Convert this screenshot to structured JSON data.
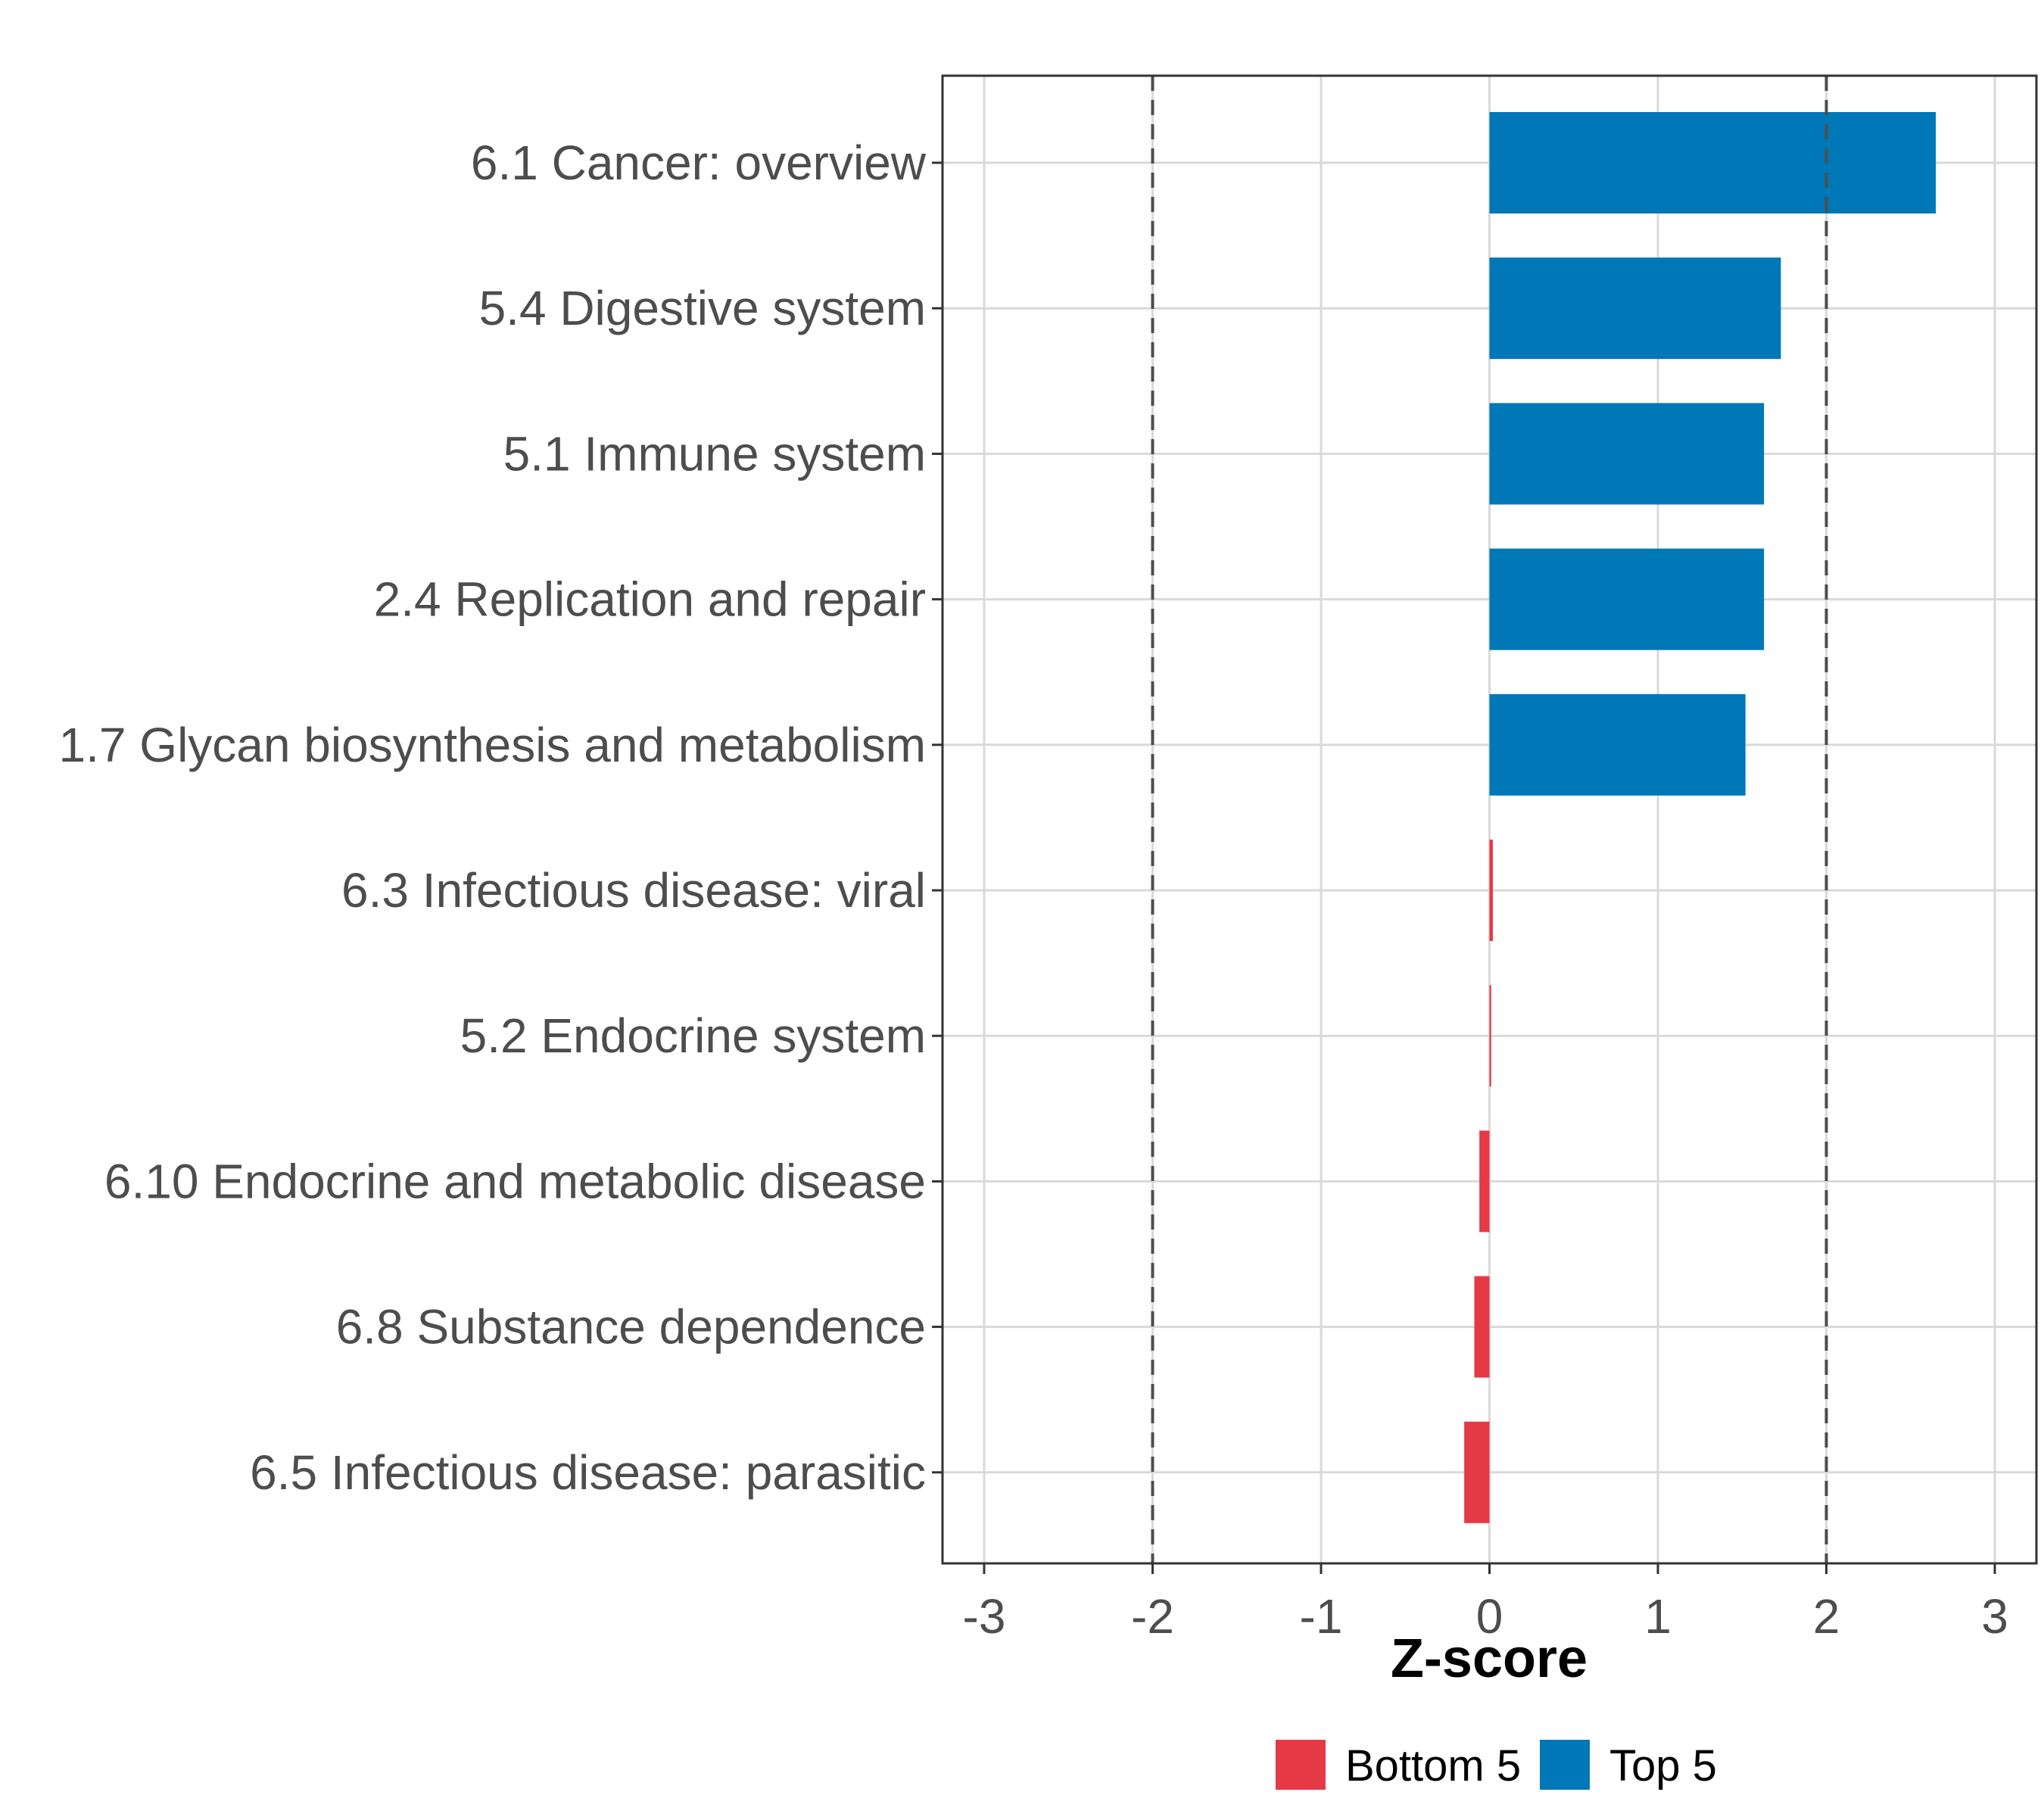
{
  "chart_data": {
    "type": "bar",
    "orientation": "horizontal",
    "categories": [
      "6.1 Cancer: overview",
      "5.4 Digestive system",
      "5.1 Immune system",
      "2.4 Replication and repair",
      "1.7 Glycan biosynthesis and metabolism",
      "6.3 Infectious disease: viral",
      "5.2 Endocrine system",
      "6.10 Endocrine and metabolic disease",
      "6.8 Substance dependence",
      "6.5 Infectious disease: parasitic"
    ],
    "values": [
      2.65,
      1.73,
      1.63,
      1.63,
      1.52,
      0.02,
      0.01,
      -0.06,
      -0.09,
      -0.15
    ],
    "groups": [
      "Top 5",
      "Top 5",
      "Top 5",
      "Top 5",
      "Top 5",
      "Bottom 5",
      "Bottom 5",
      "Bottom 5",
      "Bottom 5",
      "Bottom 5"
    ],
    "xlabel": "Z-score",
    "ylabel": "",
    "xlim": [
      -3.25,
      3.25
    ],
    "xticks": [
      -3,
      -2,
      -1,
      0,
      1,
      2,
      3
    ],
    "tick_labels": [
      "-3",
      "-2",
      "-1",
      "0",
      "1",
      "2",
      "3"
    ],
    "reference_lines": [
      -2,
      2
    ],
    "grid": true,
    "legend": {
      "position": "bottom",
      "entries": [
        {
          "name": "Bottom 5",
          "color": "#e63946"
        },
        {
          "name": "Top 5",
          "color": "#0077b6"
        }
      ]
    }
  },
  "colors": {
    "top": "#0077b6",
    "bottom": "#e63946",
    "grid": "#d9d9d9",
    "panel_border": "#333333",
    "ref_line": "#4d4d4d"
  }
}
